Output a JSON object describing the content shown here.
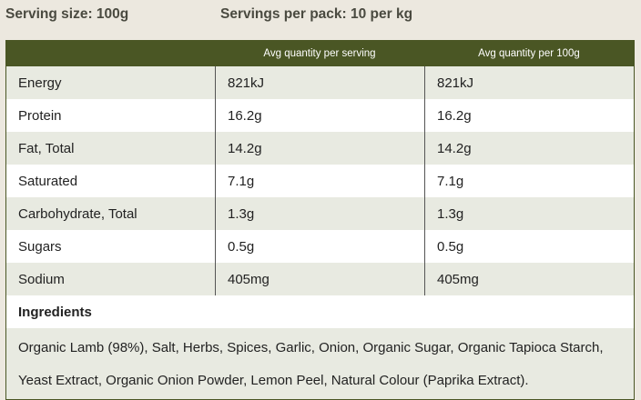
{
  "serving_size": "Serving size: 100g",
  "servings_per_pack": "Servings per pack: 10 per kg",
  "headers": [
    "",
    "Avg quantity per serving",
    "Avg quantity per 100g"
  ],
  "rows": [
    {
      "name": "Energy",
      "serving": "821kJ",
      "per100": "821kJ"
    },
    {
      "name": "Protein",
      "serving": "16.2g",
      "per100": "16.2g"
    },
    {
      "name": "Fat, Total",
      "serving": "14.2g",
      "per100": "14.2g"
    },
    {
      "name": "Saturated",
      "serving": "7.1g",
      "per100": "7.1g"
    },
    {
      "name": "Carbohydrate, Total",
      "serving": "1.3g",
      "per100": "1.3g"
    },
    {
      "name": "Sugars",
      "serving": "0.5g",
      "per100": "0.5g"
    },
    {
      "name": "Sodium",
      "serving": "405mg",
      "per100": "405mg"
    }
  ],
  "ingredients_label": "Ingredients",
  "ingredients": "Organic Lamb (98%), Salt, Herbs, Spices, Garlic, Onion, Organic Sugar, Organic Tapioca Starch, Yeast Extract, Organic Onion Powder, Lemon Peel, Natural Colour (Paprika Extract)."
}
